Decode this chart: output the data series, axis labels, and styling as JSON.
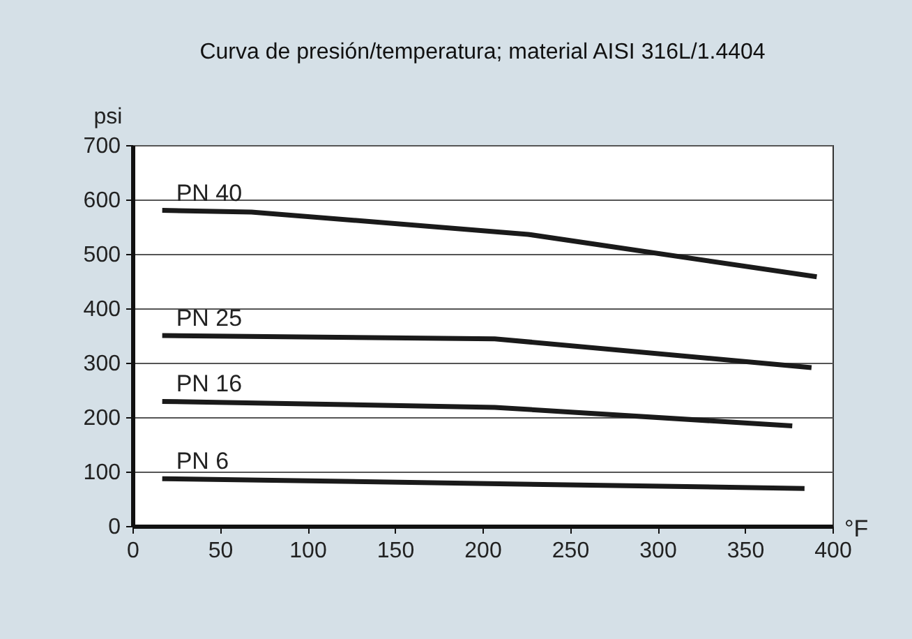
{
  "chart_data": {
    "type": "line",
    "title": "Curva de presión/temperatura; material AISI 316L/1.4404",
    "xlabel": "°F",
    "ylabel": "psi",
    "xlim": [
      0,
      400
    ],
    "xticks": [
      0,
      50,
      100,
      150,
      200,
      250,
      300,
      350,
      400
    ],
    "ylim": [
      0,
      700
    ],
    "yticks": [
      0,
      100,
      200,
      300,
      400,
      500,
      600,
      700
    ],
    "grid": "y",
    "series": [
      {
        "name": "PN 40",
        "color": "#1a1a1a",
        "x": [
          17,
          68,
          226,
          391
        ],
        "values": [
          580,
          577,
          536,
          458
        ]
      },
      {
        "name": "PN 25",
        "color": "#1a1a1a",
        "x": [
          17,
          207,
          388
        ],
        "values": [
          350,
          344,
          291
        ]
      },
      {
        "name": "PN 16",
        "color": "#1a1a1a",
        "x": [
          17,
          207,
          377
        ],
        "values": [
          229,
          218,
          184
        ]
      },
      {
        "name": "PN 6",
        "color": "#1a1a1a",
        "x": [
          17,
          384
        ],
        "values": [
          87,
          69
        ]
      }
    ]
  }
}
